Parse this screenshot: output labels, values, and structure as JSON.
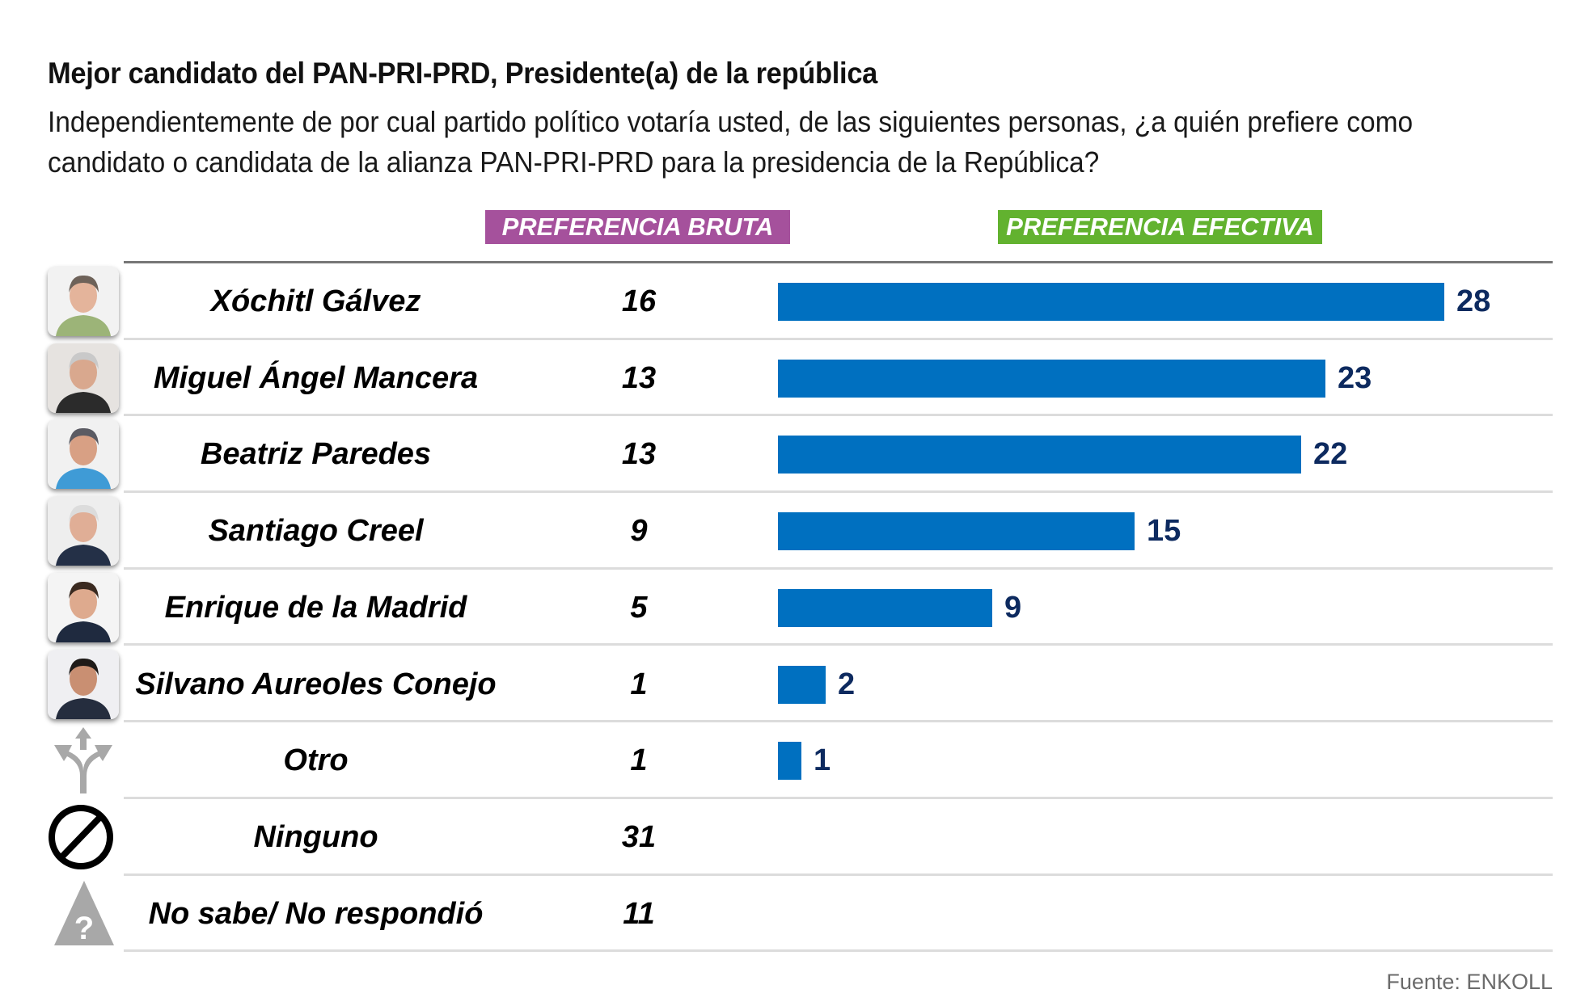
{
  "title": "Mejor candidato del PAN-PRI-PRD, Presidente(a) de la república",
  "subtitle": "Independientemente de por cual partido político votaría usted, de las siguientes personas, ¿a quién prefiere como candidato o candidata de la alianza PAN-PRI-PRD para la presidencia de la República?",
  "headers": {
    "bruta": "PREFERENCIA BRUTA",
    "efectiva": "PREFERENCIA EFECTIVA"
  },
  "colors": {
    "bruta_header": "#a5519c",
    "efectiva_header": "#62b22f",
    "bar": "#0070c0",
    "value_label": "#0d2a5f"
  },
  "footer": "Fuente: ENKOLL",
  "chart_data": {
    "type": "bar",
    "orientation": "horizontal",
    "title": "Mejor candidato del PAN-PRI-PRD, Presidente(a) de la república",
    "categories": [
      "Xóchitl Gálvez",
      "Miguel Ángel Mancera",
      "Beatriz Paredes",
      "Santiago Creel",
      "Enrique de la Madrid",
      "Silvano Aureoles Conejo",
      "Otro",
      "Ninguno",
      "No sabe/ No respondió"
    ],
    "series": [
      {
        "name": "PREFERENCIA BRUTA",
        "display": "table",
        "values": [
          16,
          13,
          13,
          9,
          5,
          1,
          1,
          31,
          11
        ]
      },
      {
        "name": "PREFERENCIA EFECTIVA",
        "display": "bar",
        "values": [
          28,
          23,
          22,
          15,
          9,
          2,
          1,
          null,
          null
        ]
      }
    ],
    "xlim": [
      0,
      28
    ],
    "grid": false,
    "legend": "none"
  },
  "rows": [
    {
      "name": "Xóchitl Gálvez",
      "bruta": "16",
      "efectiva": 28,
      "efectiva_label": "28",
      "icon": "photo-xochitl-galvez"
    },
    {
      "name": "Miguel Ángel Mancera",
      "bruta": "13",
      "efectiva": 23,
      "efectiva_label": "23",
      "icon": "photo-miguel-angel-mancera"
    },
    {
      "name": "Beatriz Paredes",
      "bruta": "13",
      "efectiva": 22,
      "efectiva_label": "22",
      "icon": "photo-beatriz-paredes"
    },
    {
      "name": "Santiago Creel",
      "bruta": "9",
      "efectiva": 15,
      "efectiva_label": "15",
      "icon": "photo-santiago-creel"
    },
    {
      "name": "Enrique de la Madrid",
      "bruta": "5",
      "efectiva": 9,
      "efectiva_label": "9",
      "icon": "photo-enrique-de-la-madrid"
    },
    {
      "name": "Silvano Aureoles Conejo",
      "bruta": "1",
      "efectiva": 2,
      "efectiva_label": "2",
      "icon": "photo-silvano-aureoles"
    },
    {
      "name": "Otro",
      "bruta": "1",
      "efectiva": 1,
      "efectiva_label": "1",
      "icon": "split-arrows-icon"
    },
    {
      "name": "Ninguno",
      "bruta": "31",
      "efectiva": null,
      "efectiva_label": null,
      "icon": "prohibited-icon"
    },
    {
      "name": "No sabe/ No respondió",
      "bruta": "11",
      "efectiva": null,
      "efectiva_label": null,
      "icon": "question-triangle-icon"
    }
  ]
}
